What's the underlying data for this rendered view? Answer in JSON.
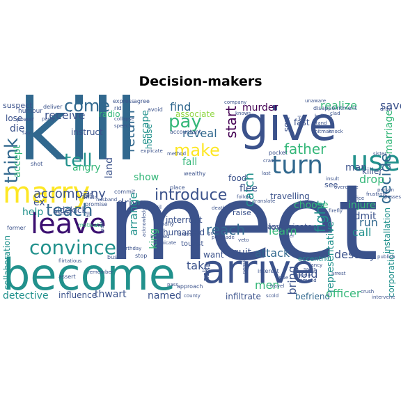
{
  "title": "Decision-makers",
  "palette": {
    "purple": "#440154",
    "indigo": "#3b528b",
    "blue": "#31688e",
    "teal": "#21918c",
    "green": "#35b779",
    "lime": "#90d743",
    "yellow": "#fde725"
  },
  "words": [
    {
      "text": "meet",
      "color": "#3b528b"
    },
    {
      "text": "kill",
      "color": "#31688e"
    },
    {
      "text": "give",
      "color": "#3b528b"
    },
    {
      "text": "become",
      "color": "#21918c"
    },
    {
      "text": "arrive",
      "color": "#3b528b"
    },
    {
      "text": "marry",
      "color": "#fde725"
    },
    {
      "text": "leave",
      "color": "#3b0f70"
    },
    {
      "text": "use",
      "color": "#21918c"
    },
    {
      "text": "turn",
      "color": "#31688e"
    },
    {
      "text": "convince",
      "color": "#21918c"
    },
    {
      "text": "teach",
      "color": "#31688e"
    },
    {
      "text": "tell",
      "color": "#21918c"
    },
    {
      "text": "come",
      "color": "#31688e"
    },
    {
      "text": "think",
      "color": "#31688e"
    },
    {
      "text": "make",
      "color": "#fde725"
    },
    {
      "text": "pay",
      "color": "#35b779"
    },
    {
      "text": "introduce",
      "color": "#3b528b"
    },
    {
      "text": "father",
      "color": "#35b779"
    },
    {
      "text": "decide",
      "color": "#31688e"
    },
    {
      "text": "reach",
      "color": "#31688e"
    },
    {
      "text": "start",
      "color": "#440154"
    },
    {
      "text": "accompany",
      "color": "#3b528b"
    },
    {
      "text": "return",
      "color": "#31688e"
    },
    {
      "text": "fight",
      "color": "#21918c"
    },
    {
      "text": "attack",
      "color": "#31688e"
    },
    {
      "text": "realize",
      "color": "#35b779"
    },
    {
      "text": "save",
      "color": "#3b528b"
    },
    {
      "text": "find",
      "color": "#31688e"
    },
    {
      "text": "reveal",
      "color": "#31688e"
    },
    {
      "text": "receive",
      "color": "#3b528b"
    },
    {
      "text": "drive",
      "color": "#3b528b"
    },
    {
      "text": "call",
      "color": "#21918c"
    },
    {
      "text": "catch",
      "color": "#21918c"
    },
    {
      "text": "run",
      "color": "#31688e"
    },
    {
      "text": "take",
      "color": "#3b528b"
    },
    {
      "text": "men",
      "color": "#35b779"
    },
    {
      "text": "bring",
      "color": "#3b528b"
    },
    {
      "text": "hold",
      "color": "#3b528b"
    },
    {
      "text": "destroy",
      "color": "#3b528b"
    },
    {
      "text": "want",
      "color": "#3b528b"
    },
    {
      "text": "quit",
      "color": "#3b528b"
    },
    {
      "text": "learn",
      "color": "#35b779"
    },
    {
      "text": "injure",
      "color": "#35b779"
    },
    {
      "text": "drop",
      "color": "#35b779"
    },
    {
      "text": "admit",
      "color": "#3b528b"
    },
    {
      "text": "officer",
      "color": "#35b779"
    },
    {
      "text": "detective",
      "color": "#21918c"
    },
    {
      "text": "influence",
      "color": "#3b528b"
    },
    {
      "text": "thwart",
      "color": "#3b528b"
    },
    {
      "text": "named",
      "color": "#3b528b"
    },
    {
      "text": "arrange",
      "color": "#21918c"
    },
    {
      "text": "show",
      "color": "#35b779"
    },
    {
      "text": "angry",
      "color": "#35b779"
    },
    {
      "text": "help",
      "color": "#21918c"
    },
    {
      "text": "murder",
      "color": "#440154"
    },
    {
      "text": "man",
      "color": "#3b528b"
    },
    {
      "text": "killer",
      "color": "#3b528b"
    },
    {
      "text": "flee",
      "color": "#3b528b"
    },
    {
      "text": "fall",
      "color": "#35b779"
    },
    {
      "text": "escape",
      "color": "#21918c"
    },
    {
      "text": "choose",
      "color": "#35b779"
    },
    {
      "text": "lovely",
      "color": "#3b528b"
    },
    {
      "text": "representative",
      "color": "#21918c"
    },
    {
      "text": "infiltrate",
      "color": "#3b528b"
    },
    {
      "text": "befriend",
      "color": "#31688e"
    },
    {
      "text": "ask",
      "color": "#3b528b"
    },
    {
      "text": "die",
      "color": "#3b528b"
    },
    {
      "text": "lose",
      "color": "#3b528b"
    },
    {
      "text": "accept",
      "color": "#35b779"
    },
    {
      "text": "land",
      "color": "#3b528b"
    },
    {
      "text": "food",
      "color": "#3b528b"
    },
    {
      "text": "interrupt",
      "color": "#3b528b"
    },
    {
      "text": "humanoid",
      "color": "#3b528b"
    },
    {
      "text": "ex",
      "color": "#3b528b"
    },
    {
      "text": "sidekick",
      "color": "#3b528b"
    },
    {
      "text": "instruct",
      "color": "#3b528b"
    },
    {
      "text": "travelling",
      "color": "#3b528b"
    },
    {
      "text": "marriage",
      "color": "#35b779"
    },
    {
      "text": "king",
      "color": "#35b779"
    },
    {
      "text": "house",
      "color": "#21918c"
    },
    {
      "text": "associate",
      "color": "#90d743"
    },
    {
      "text": "fast",
      "color": "#3b528b"
    },
    {
      "text": "son",
      "color": "#3b528b"
    },
    {
      "text": "radio",
      "color": "#35b779"
    },
    {
      "text": "see",
      "color": "#3b528b"
    },
    {
      "text": "raise",
      "color": "#3b528b"
    },
    {
      "text": "suspect",
      "color": "#3b528b"
    },
    {
      "text": "collaboration",
      "color": "#21918c"
    },
    {
      "text": "installation",
      "color": "#21918c"
    },
    {
      "text": "corporation",
      "color": "#21918c"
    },
    {
      "text": "assassinate",
      "color": "#3b528b"
    },
    {
      "text": "eccentric",
      "color": "#21918c"
    },
    {
      "text": "tourist",
      "color": "#3b528b"
    },
    {
      "text": "humour",
      "color": "#3b528b"
    },
    {
      "text": "deliver",
      "color": "#3b528b"
    },
    {
      "text": "express",
      "color": "#3b528b"
    },
    {
      "text": "agree",
      "color": "#3b528b"
    },
    {
      "text": "avoid",
      "color": "#3b528b"
    },
    {
      "text": "disappointment",
      "color": "#3b528b"
    },
    {
      "text": "company",
      "color": "#3b528b"
    },
    {
      "text": "unaware",
      "color": "#3b528b"
    },
    {
      "text": "scold",
      "color": "#3b528b"
    },
    {
      "text": "intervene",
      "color": "#3b528b"
    },
    {
      "text": "county",
      "color": "#3b528b"
    },
    {
      "text": "crush",
      "color": "#3b528b"
    },
    {
      "text": "interest",
      "color": "#3b528b"
    },
    {
      "text": "demand",
      "color": "#3b528b"
    },
    {
      "text": "sales",
      "color": "#3b528b"
    },
    {
      "text": "fancy",
      "color": "#3b528b"
    },
    {
      "text": "office",
      "color": "#3b528b"
    },
    {
      "text": "sister",
      "color": "#3b528b"
    },
    {
      "text": "publish",
      "color": "#3b528b"
    },
    {
      "text": "draw",
      "color": "#3b528b"
    },
    {
      "text": "pocket",
      "color": "#3b528b"
    },
    {
      "text": "closer",
      "color": "#3b528b"
    },
    {
      "text": "bribe",
      "color": "#3b528b"
    },
    {
      "text": "veto",
      "color": "#3b528b"
    },
    {
      "text": "death",
      "color": "#3b528b"
    },
    {
      "text": "evil",
      "color": "#3b528b"
    },
    {
      "text": "promise",
      "color": "#3b528b"
    },
    {
      "text": "affair",
      "color": "#3b528b"
    },
    {
      "text": "former",
      "color": "#3b528b"
    },
    {
      "text": "bust",
      "color": "#3b528b"
    },
    {
      "text": "stop",
      "color": "#3b528b"
    },
    {
      "text": "finally",
      "color": "#3b528b"
    },
    {
      "text": "injured",
      "color": "#3b528b"
    },
    {
      "text": "wealthy",
      "color": "#3b528b"
    },
    {
      "text": "place",
      "color": "#3b528b"
    },
    {
      "text": "commit",
      "color": "#3b528b"
    },
    {
      "text": "explicate",
      "color": "#3b528b"
    },
    {
      "text": "accountant",
      "color": "#3b528b"
    },
    {
      "text": "collapse",
      "color": "#3b528b"
    },
    {
      "text": "speech",
      "color": "#3b528b"
    },
    {
      "text": "power",
      "color": "#3b528b"
    },
    {
      "text": "party",
      "color": "#3b528b"
    },
    {
      "text": "ranch",
      "color": "#3b528b"
    },
    {
      "text": "husband",
      "color": "#3b528b"
    },
    {
      "text": "method",
      "color": "#3b528b"
    },
    {
      "text": "brother",
      "color": "#3b528b"
    },
    {
      "text": "approach",
      "color": "#3b528b"
    },
    {
      "text": "assert",
      "color": "#3b528b"
    },
    {
      "text": "flirtatious",
      "color": "#3b528b"
    },
    {
      "text": "fill",
      "color": "#3b528b"
    },
    {
      "text": "remember",
      "color": "#3b528b"
    },
    {
      "text": "motivate",
      "color": "#35b779"
    },
    {
      "text": "shot",
      "color": "#3b528b"
    },
    {
      "text": "say",
      "color": "#3b528b"
    },
    {
      "text": "rid",
      "color": "#3b528b"
    },
    {
      "text": "believe",
      "color": "#3b528b"
    },
    {
      "text": "stand",
      "color": "#3b528b"
    },
    {
      "text": "clad",
      "color": "#3b528b"
    },
    {
      "text": "knock",
      "color": "#3b528b"
    },
    {
      "text": "hitman",
      "color": "#3b528b"
    },
    {
      "text": "overcome",
      "color": "#3b528b"
    },
    {
      "text": "frustrate",
      "color": "#3b528b"
    },
    {
      "text": "person",
      "color": "#3b528b"
    },
    {
      "text": "firefly",
      "color": "#3b528b"
    },
    {
      "text": "travel",
      "color": "#3b528b"
    },
    {
      "text": "appear",
      "color": "#3b528b"
    },
    {
      "text": "arrest",
      "color": "#3b528b"
    },
    {
      "text": "last",
      "color": "#3b528b"
    },
    {
      "text": "insult",
      "color": "#3b528b"
    },
    {
      "text": "possess",
      "color": "#3b528b"
    },
    {
      "text": "go",
      "color": "#3b528b"
    },
    {
      "text": "knows",
      "color": "#3b528b"
    },
    {
      "text": "crash",
      "color": "#3b528b"
    },
    {
      "text": "rivel",
      "color": "#3b528b"
    },
    {
      "text": "cope",
      "color": "#3b528b"
    },
    {
      "text": "acknowledge",
      "color": "#3b528b"
    },
    {
      "text": "pass",
      "color": "#3b528b"
    },
    {
      "text": "birthday",
      "color": "#3b528b"
    },
    {
      "text": "fornicate",
      "color": "#3b528b"
    },
    {
      "text": "wash",
      "color": "#3b528b"
    },
    {
      "text": "persuade",
      "color": "#3b528b"
    },
    {
      "text": "follow",
      "color": "#3b528b"
    },
    {
      "text": "translate",
      "color": "#3b528b"
    },
    {
      "text": "pension",
      "color": "#3b528b"
    },
    {
      "text": "baker",
      "color": "#3b528b"
    },
    {
      "text": "dump",
      "color": "#3b528b"
    }
  ]
}
